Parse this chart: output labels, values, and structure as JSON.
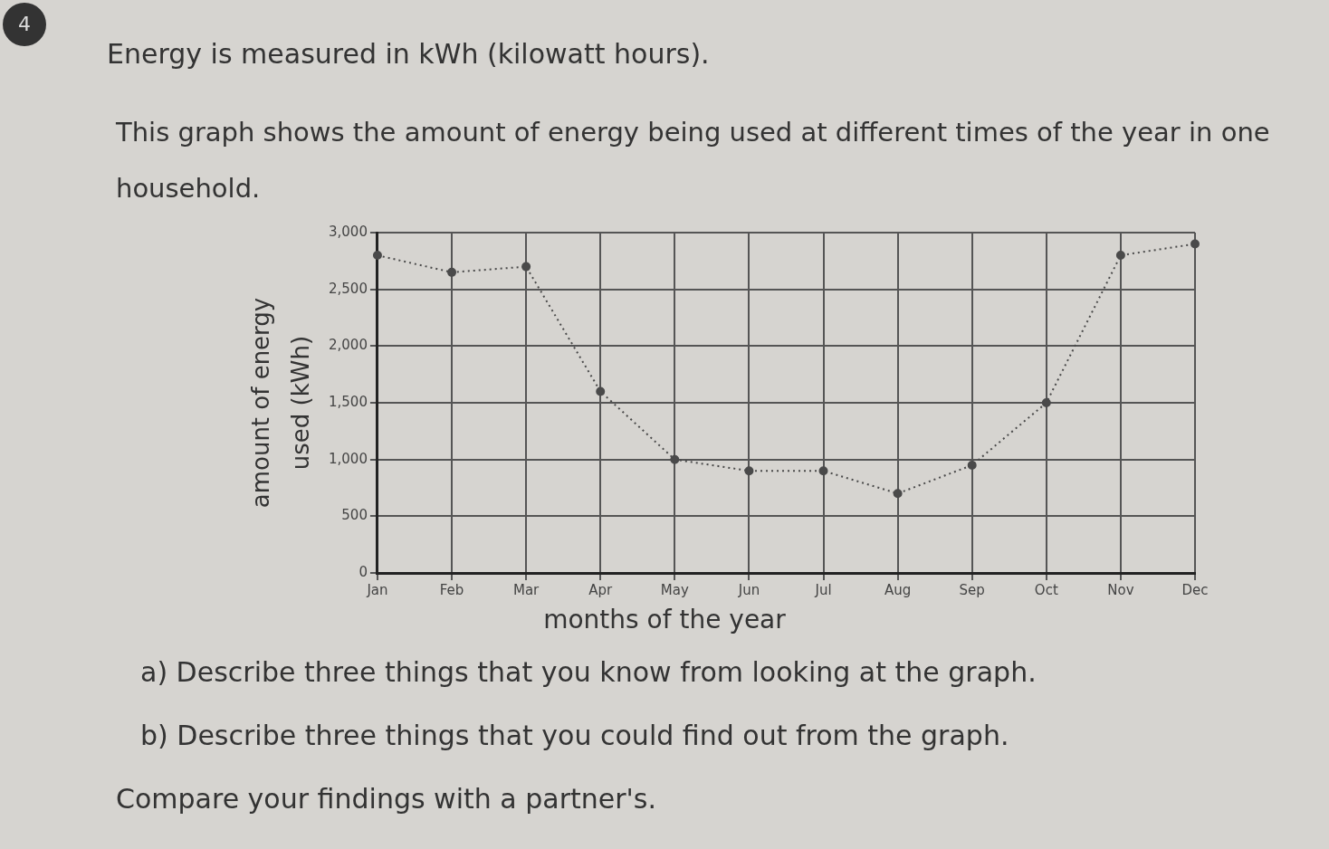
{
  "chart_data": {
    "type": "line",
    "title": "Energy is measured in kWh (kilowatt hours).",
    "subtitle": "This graph shows the amount of energy being used at different times of the year in one household.",
    "xlabel": "months of the year",
    "ylabel": "amount of energy used (kWh)",
    "categories": [
      "Jan",
      "Feb",
      "Mar",
      "Apr",
      "May",
      "Jun",
      "Jul",
      "Aug",
      "Sep",
      "Oct",
      "Nov",
      "Dec"
    ],
    "series": [
      {
        "color": "#4a4a4a",
        "values": [
          2800,
          2650,
          2700,
          1600,
          1000,
          900,
          900,
          700,
          950,
          1500,
          2800,
          2900
        ]
      }
    ],
    "ylim": [
      0,
      3000
    ],
    "yticks": [
      0,
      {
        "value": 500,
        "label": "500"
      },
      {
        "value": 1000,
        "label": "1,000"
      },
      {
        "value": 1500,
        "label": "1,500"
      },
      {
        "value": 2000,
        "label": "2,000"
      },
      {
        "value": 2500,
        "label": "2,500"
      },
      {
        "value": 3000,
        "label": "3,000"
      }
    ],
    "grid": true,
    "legend": false,
    "marker": "circle",
    "line_style": "dotted",
    "annotations": [
      "4",
      "a) Describe three things that you know from looking at the graph.",
      "b) Describe three things that you could find out from the graph.",
      "Compare your findings with a partner's."
    ]
  }
}
